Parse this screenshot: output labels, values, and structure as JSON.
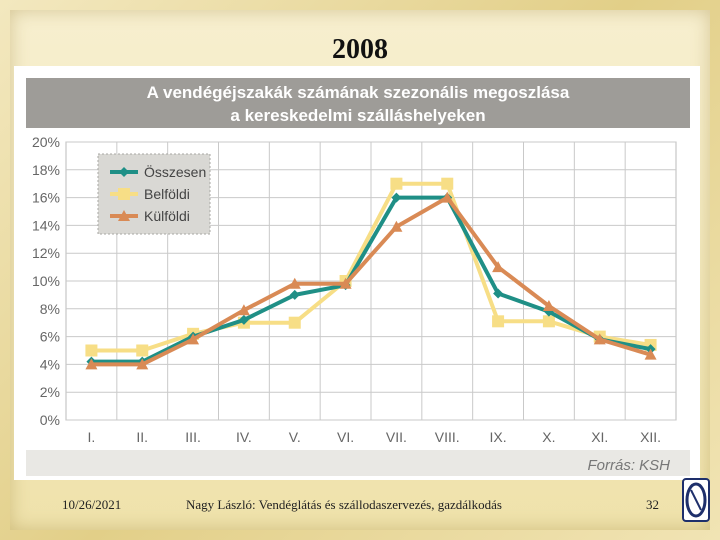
{
  "slide": {
    "title": "2008",
    "footer_date": "10/26/2021",
    "footer_text": "Nagy László:   Vendéglátás és szállodaszervezés, gazdálkodás",
    "page_number": "32"
  },
  "chart_data": {
    "type": "line",
    "title": "A vendégéjszakák számának szezonális megoszlása",
    "subtitle": "a kereskedelmi szálláshelyeken",
    "source": "Forrás: KSH",
    "categories": [
      "I.",
      "II.",
      "III.",
      "IV.",
      "V.",
      "VI.",
      "VII.",
      "VIII.",
      "IX.",
      "X.",
      "XI.",
      "XII."
    ],
    "y_ticks": [
      "0%",
      "2%",
      "4%",
      "6%",
      "8%",
      "10%",
      "12%",
      "14%",
      "16%",
      "18%",
      "20%"
    ],
    "ylim": [
      0,
      20
    ],
    "grid": true,
    "legend_position": "top-left",
    "series": [
      {
        "name": "Összesen",
        "color": "#1f8f86",
        "marker": "diamond",
        "values": [
          4.2,
          4.2,
          6.0,
          7.2,
          9.0,
          9.7,
          16.0,
          16.0,
          9.1,
          7.8,
          5.8,
          5.1
        ]
      },
      {
        "name": "Belföldi",
        "color": "#f7de86",
        "marker": "square",
        "values": [
          5.0,
          5.0,
          6.2,
          7.0,
          7.0,
          10.0,
          17.0,
          17.0,
          7.1,
          7.1,
          6.0,
          5.4
        ]
      },
      {
        "name": "Külföldi",
        "color": "#d98a55",
        "marker": "triangle",
        "values": [
          4.0,
          4.0,
          5.8,
          7.9,
          9.8,
          9.8,
          13.9,
          16.0,
          11.0,
          8.2,
          5.8,
          4.7
        ]
      }
    ]
  }
}
